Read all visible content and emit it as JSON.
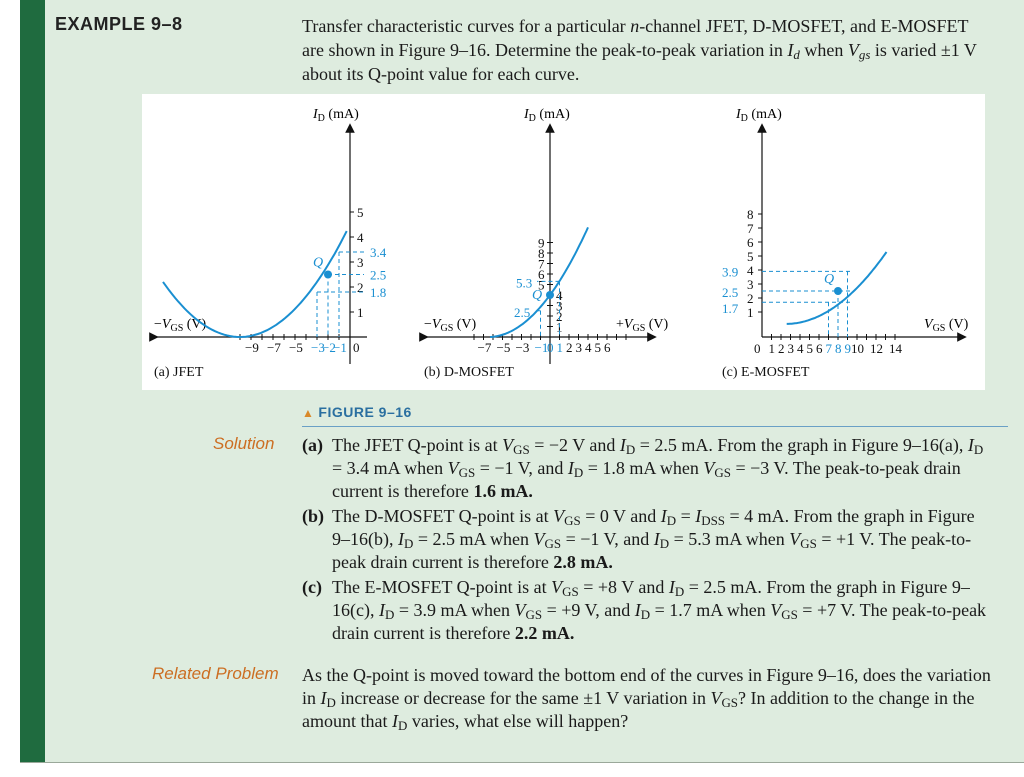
{
  "example_label": "EXAMPLE 9–8",
  "problem_html": "Transfer characteristic curves for a particular <i>n</i>-channel JFET, D-MOSFET, and E-MOSFET are shown in Figure 9–16. Determine the peak-to-peak variation in <i>I<sub>d</sub></i> when <i>V<sub>gs</sub></i> is varied ±1 V about its Q-point value for each curve.",
  "figure": {
    "caption": "FIGURE 9–16",
    "jfet": {
      "sublabel": "(a) JFET",
      "q_label": "Q",
      "x_ticks": [
        "−9",
        "−7",
        "−5"
      ],
      "x_ticks_colored": [
        "−3",
        "−2",
        "−1"
      ],
      "x_zero": "0",
      "y_ticks": [
        "5",
        "4",
        "3",
        "2",
        "1"
      ],
      "annotations": [
        "3.4",
        "2.5",
        "1.8"
      ],
      "q_point": {
        "vgs": -2,
        "id": 2.5
      },
      "vgs_off": -10,
      "idss": 4.5
    },
    "dmosfet": {
      "sublabel": "(b) D-MOSFET",
      "q_label": "Q",
      "x_ticks_left": [
        "−7",
        "−5",
        "−3"
      ],
      "x_ticks_colored": [
        "−1",
        "0",
        "1"
      ],
      "x_ticks_right": [
        "2",
        "3",
        "4",
        "5",
        "6"
      ],
      "y_ticks_upper": [
        "9",
        "8",
        "7",
        "6",
        "5"
      ],
      "y_ticks_lower": [
        "4",
        "3",
        "2",
        "1"
      ],
      "annotations": [
        "5.3",
        "2.5"
      ],
      "q_point": {
        "vgs": 0,
        "id": 4
      }
    },
    "emosfet": {
      "sublabel": "(c) E-MOSFET",
      "q_label": "Q",
      "x_zero": "0",
      "x_ticks": [
        "1",
        "2",
        "3",
        "4",
        "5",
        "6"
      ],
      "x_ticks_colored": [
        "7",
        "8",
        "9"
      ],
      "x_ticks_right": [
        "10",
        "12",
        "14"
      ],
      "y_ticks": [
        "8",
        "7",
        "6",
        "5",
        "4",
        "3",
        "2",
        "1"
      ],
      "annotations": [
        "3.9",
        "2.5",
        "1.7"
      ],
      "q_point": {
        "vgs": 8,
        "id": 2.5
      }
    }
  },
  "solution": {
    "label": "Solution",
    "items": [
      {
        "label": "(a)",
        "html": "The JFET Q-point is at <i>V</i><sub>GS</sub> = −2 V and <i>I</i><sub>D</sub> = 2.5 mA. From the graph in Figure 9–16(a), <i>I</i><sub>D</sub> = 3.4 mA when <i>V</i><sub>GS</sub> = −1 V, and <i>I</i><sub>D</sub> = 1.8 mA when <i>V</i><sub>GS</sub> = −3 V. The peak-to-peak drain current is therefore <b>1.6 mA.</b>"
      },
      {
        "label": "(b)",
        "html": "The D-MOSFET Q-point is at <i>V</i><sub>GS</sub> = 0 V and <i>I</i><sub>D</sub> = <i>I</i><sub>DSS</sub> = 4 mA. From the graph in Figure 9–16(b), <i>I</i><sub>D</sub> = 2.5 mA when <i>V</i><sub>GS</sub> = −1 V, and <i>I</i><sub>D</sub> = 5.3 mA when <i>V</i><sub>GS</sub> = +1 V. The peak-to-peak drain current is therefore <b>2.8 mA.</b>"
      },
      {
        "label": "(c)",
        "html": "The E-MOSFET Q-point is at <i>V</i><sub>GS</sub> = +8 V and <i>I</i><sub>D</sub> = 2.5 mA. From the graph in Figure 9–16(c), <i>I</i><sub>D</sub> = 3.9 mA when <i>V</i><sub>GS</sub> = +9 V, and <i>I</i><sub>D</sub> = 1.7 mA when <i>V</i><sub>GS</sub> = +7 V. The peak-to-peak drain current is therefore <b>2.2 mA.</b>"
      }
    ]
  },
  "related": {
    "label": "Related Problem",
    "html": "As the Q-point is moved toward the bottom end of the curves in Figure 9–16, does the variation in <i>I</i><sub>D</sub> increase or decrease for the same ±1 V variation in <i>V</i><sub>GS</sub>? In addition to the change in the amount that <i>I</i><sub>D</sub> varies, what else will happen?"
  },
  "colors": {
    "accent_blue": "#1a8fd1",
    "green_bar": "#1f6b3f",
    "panel_bg": "#deecdf",
    "orange": "#cc6e22"
  }
}
